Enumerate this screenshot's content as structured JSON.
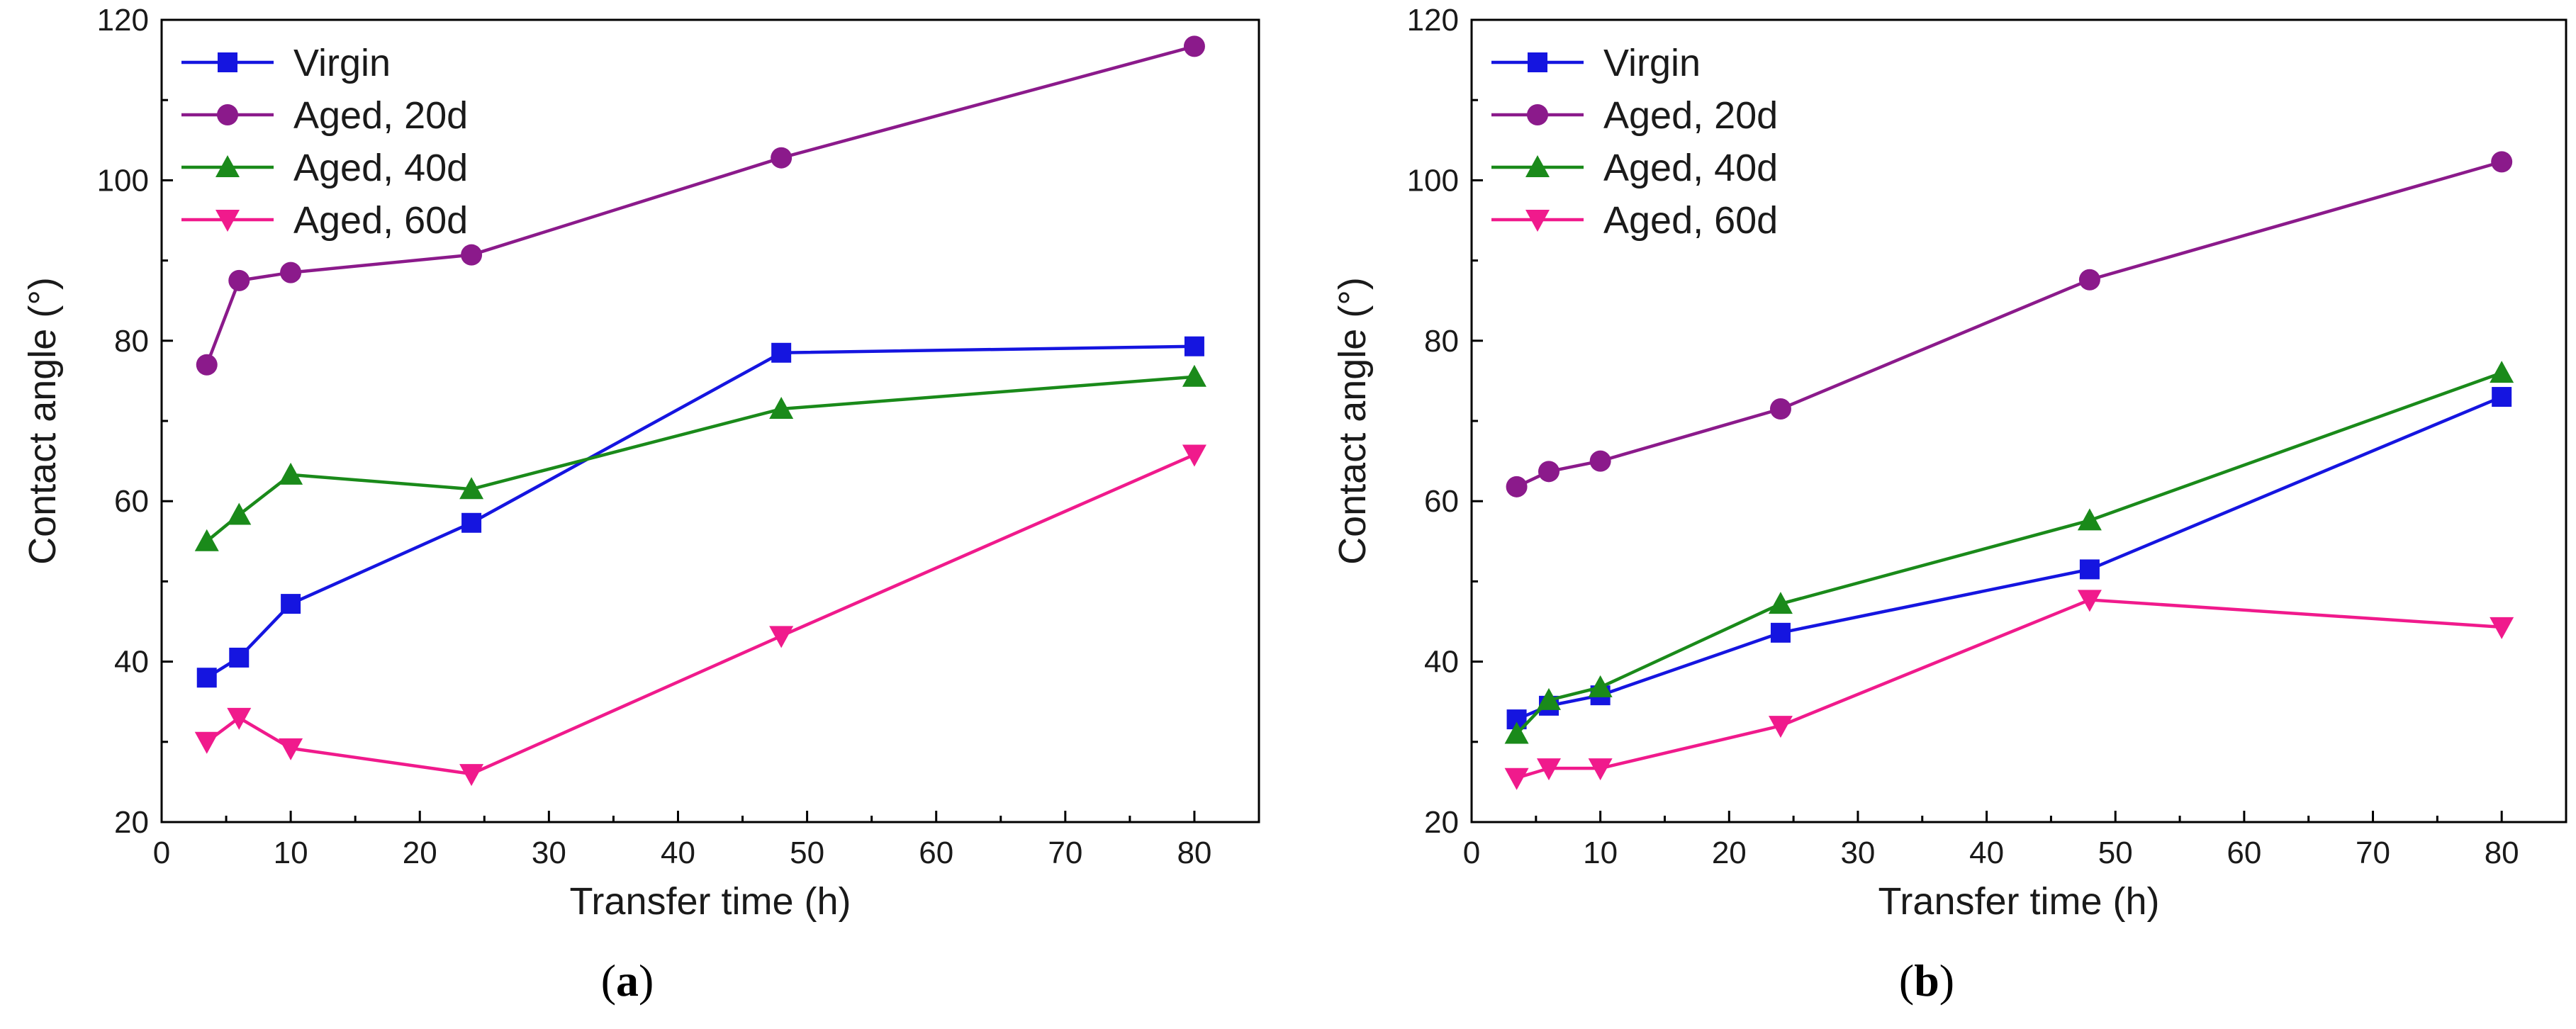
{
  "charts": [
    {
      "caption": "a",
      "type": "line",
      "xlabel": "Transfer time (h)",
      "ylabel": "Contact angle (°)",
      "xlim": [
        0,
        85
      ],
      "ylim": [
        20,
        120
      ],
      "xticks": [
        0,
        10,
        20,
        30,
        40,
        50,
        60,
        70,
        80
      ],
      "yticks": [
        20,
        40,
        60,
        80,
        100,
        120
      ],
      "legend_position": "top-left",
      "series": [
        {
          "name": "Virgin",
          "color": "#1515e0",
          "marker": "square",
          "x": [
            3.5,
            6,
            10,
            24,
            48,
            80
          ],
          "y": [
            38,
            40.5,
            47.2,
            57.3,
            78.5,
            79.3
          ]
        },
        {
          "name": "Aged, 20d",
          "color": "#8b1a8b",
          "marker": "circle",
          "x": [
            3.5,
            6,
            10,
            24,
            48,
            80
          ],
          "y": [
            77,
            87.5,
            88.5,
            90.7,
            102.8,
            116.7
          ]
        },
        {
          "name": "Aged, 40d",
          "color": "#1a8a1a",
          "marker": "triangle-up",
          "x": [
            3.5,
            6,
            10,
            24,
            48,
            80
          ],
          "y": [
            55,
            58.3,
            63.3,
            61.5,
            71.5,
            75.5
          ]
        },
        {
          "name": "Aged, 60d",
          "color": "#f01a8c",
          "marker": "triangle-down",
          "x": [
            3.5,
            6,
            10,
            24,
            48,
            80
          ],
          "y": [
            30,
            33,
            29.2,
            26,
            43.2,
            65.8
          ]
        }
      ]
    },
    {
      "caption": "b",
      "type": "line",
      "xlabel": "Transfer time (h)",
      "ylabel": "Contact angle (°)",
      "xlim": [
        0,
        85
      ],
      "ylim": [
        20,
        120
      ],
      "xticks": [
        0,
        10,
        20,
        30,
        40,
        50,
        60,
        70,
        80
      ],
      "yticks": [
        20,
        40,
        60,
        80,
        100,
        120
      ],
      "legend_position": "top-left",
      "series": [
        {
          "name": "Virgin",
          "color": "#1515e0",
          "marker": "square",
          "x": [
            3.5,
            6,
            10,
            24,
            48,
            80
          ],
          "y": [
            32.8,
            34.5,
            35.8,
            43.6,
            51.5,
            73
          ]
        },
        {
          "name": "Aged, 20d",
          "color": "#8b1a8b",
          "marker": "circle",
          "x": [
            3.5,
            6,
            10,
            24,
            48,
            80
          ],
          "y": [
            61.8,
            63.7,
            65,
            71.5,
            87.6,
            102.3
          ]
        },
        {
          "name": "Aged, 40d",
          "color": "#1a8a1a",
          "marker": "triangle-up",
          "x": [
            3.5,
            6,
            10,
            24,
            48,
            80
          ],
          "y": [
            31,
            35.2,
            36.8,
            47.2,
            57.6,
            76
          ]
        },
        {
          "name": "Aged, 60d",
          "color": "#f01a8c",
          "marker": "triangle-down",
          "x": [
            3.5,
            6,
            10,
            24,
            48,
            80
          ],
          "y": [
            25.5,
            26.7,
            26.7,
            32,
            47.7,
            44.3
          ]
        }
      ]
    }
  ]
}
